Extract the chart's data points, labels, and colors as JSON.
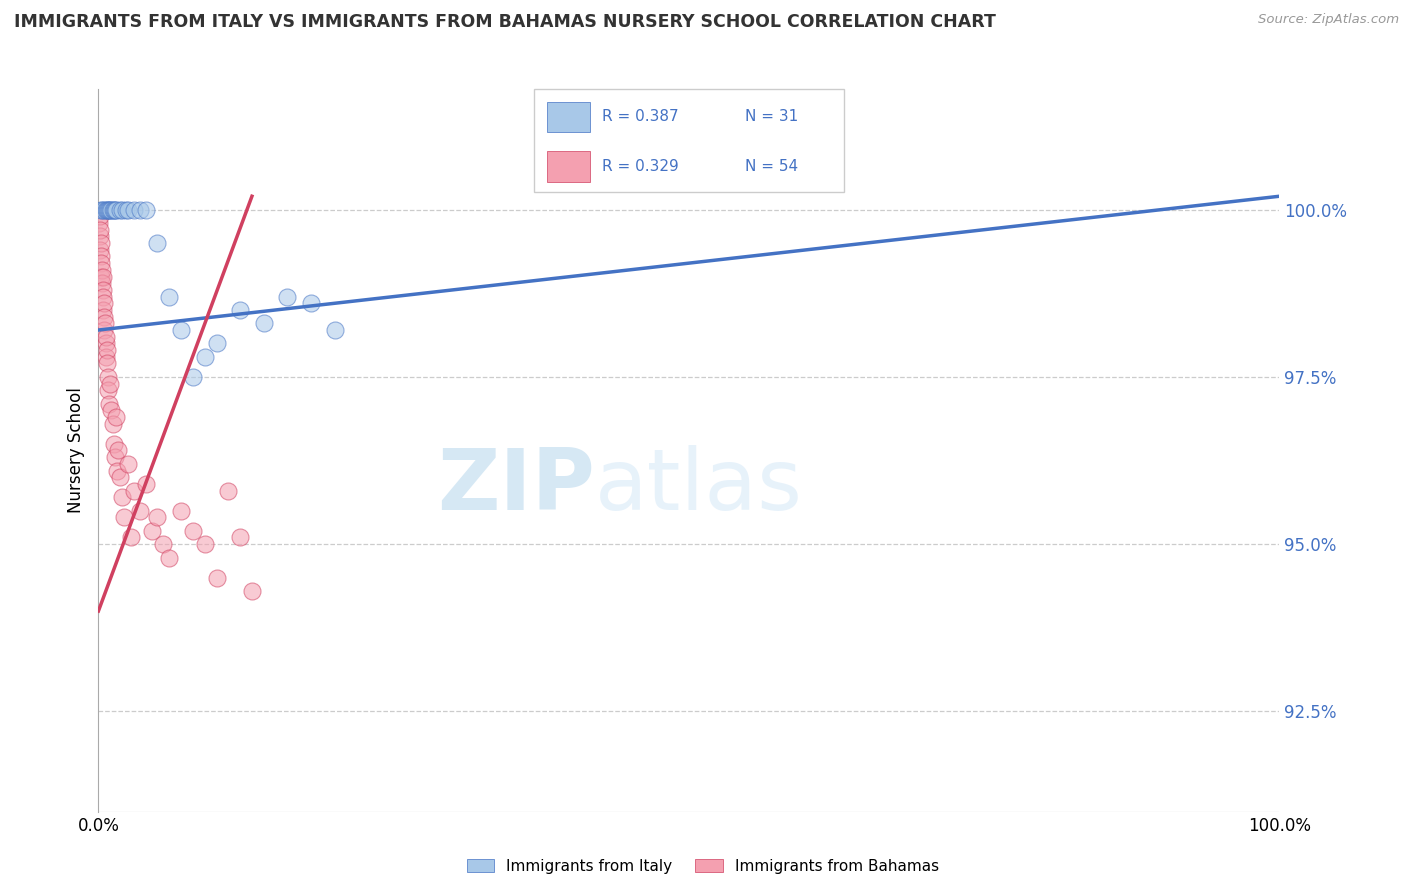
{
  "title": "IMMIGRANTS FROM ITALY VS IMMIGRANTS FROM BAHAMAS NURSERY SCHOOL CORRELATION CHART",
  "source": "Source: ZipAtlas.com",
  "ylabel": "Nursery School",
  "xlim": [
    0.0,
    100.0
  ],
  "ylim": [
    91.0,
    101.8
  ],
  "yticks": [
    92.5,
    95.0,
    97.5,
    100.0
  ],
  "ytick_labels": [
    "92.5%",
    "95.0%",
    "97.5%",
    "100.0%"
  ],
  "xtick_labels": [
    "0.0%",
    "100.0%"
  ],
  "xtick_vals": [
    0.0,
    100.0
  ],
  "color_italy": "#a8c8e8",
  "color_bahamas": "#f4a0b0",
  "color_italy_line": "#4472c4",
  "color_bahamas_line": "#d04060",
  "legend_label_italy": "Immigrants from Italy",
  "legend_label_bahamas": "Immigrants from Bahamas",
  "italy_x": [
    0.2,
    0.3,
    0.5,
    0.6,
    0.7,
    0.8,
    0.9,
    1.0,
    1.1,
    1.2,
    1.3,
    1.4,
    1.5,
    1.8,
    2.0,
    2.3,
    2.5,
    3.0,
    3.5,
    4.0,
    5.0,
    6.0,
    7.0,
    8.0,
    9.0,
    10.0,
    12.0,
    14.0,
    16.0,
    18.0,
    20.0
  ],
  "italy_y": [
    100.0,
    100.0,
    100.0,
    100.0,
    100.0,
    100.0,
    100.0,
    100.0,
    100.0,
    100.0,
    100.0,
    100.0,
    100.0,
    100.0,
    100.0,
    100.0,
    100.0,
    100.0,
    100.0,
    100.0,
    99.5,
    98.7,
    98.2,
    97.5,
    97.8,
    98.0,
    98.5,
    98.3,
    98.7,
    98.6,
    98.2
  ],
  "bahamas_x": [
    0.05,
    0.1,
    0.1,
    0.15,
    0.15,
    0.2,
    0.2,
    0.25,
    0.25,
    0.3,
    0.3,
    0.35,
    0.35,
    0.4,
    0.4,
    0.45,
    0.5,
    0.5,
    0.55,
    0.6,
    0.6,
    0.65,
    0.7,
    0.75,
    0.8,
    0.85,
    0.9,
    1.0,
    1.1,
    1.2,
    1.3,
    1.4,
    1.5,
    1.6,
    1.7,
    1.8,
    2.0,
    2.2,
    2.5,
    2.8,
    3.0,
    3.5,
    4.0,
    4.5,
    5.0,
    5.5,
    6.0,
    7.0,
    8.0,
    9.0,
    10.0,
    11.0,
    12.0,
    13.0
  ],
  "bahamas_y": [
    99.8,
    99.9,
    99.6,
    99.7,
    99.4,
    99.5,
    99.3,
    99.2,
    99.0,
    99.1,
    98.9,
    99.0,
    98.8,
    98.7,
    98.5,
    98.6,
    98.4,
    98.2,
    98.3,
    98.0,
    98.1,
    97.8,
    97.9,
    97.7,
    97.5,
    97.3,
    97.1,
    97.4,
    97.0,
    96.8,
    96.5,
    96.3,
    96.9,
    96.1,
    96.4,
    96.0,
    95.7,
    95.4,
    96.2,
    95.1,
    95.8,
    95.5,
    95.9,
    95.2,
    95.4,
    95.0,
    94.8,
    95.5,
    95.2,
    95.0,
    94.5,
    95.8,
    95.1,
    94.3
  ],
  "italy_trendline_x": [
    0.0,
    100.0
  ],
  "italy_trendline_y": [
    98.2,
    100.2
  ],
  "bahamas_trendline_x": [
    0.0,
    13.0
  ],
  "bahamas_trendline_y": [
    94.0,
    100.2
  ],
  "watermark_zip": "ZIP",
  "watermark_atlas": "atlas"
}
